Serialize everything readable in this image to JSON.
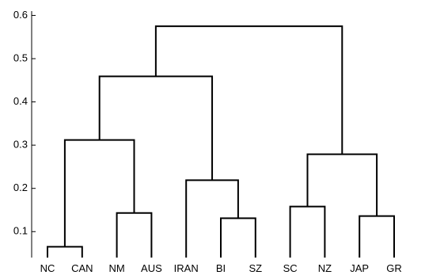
{
  "chart_data": {
    "type": "dendrogram",
    "leaves": [
      "NC",
      "CAN",
      "NM",
      "AUS",
      "IRAN",
      "BI",
      "SZ",
      "SC",
      "NZ",
      "JAP",
      "GR"
    ],
    "y_ticks": [
      0.1,
      0.2,
      0.3,
      0.4,
      0.5,
      0.6
    ],
    "y_tick_labels": [
      "0.1",
      "0.2",
      "0.3",
      "0.4",
      "0.5",
      "0.6"
    ],
    "ylim": [
      0.04,
      0.61
    ],
    "merges": [
      {
        "left": "NC",
        "right": "CAN",
        "height": 0.065
      },
      {
        "left": "NM",
        "right": "AUS",
        "height": 0.143
      },
      {
        "left": "BI",
        "right": "SZ",
        "height": 0.131
      },
      {
        "left": "SC",
        "right": "NZ",
        "height": 0.158
      },
      {
        "left": "JAP",
        "right": "GR",
        "height": 0.136
      },
      {
        "left": "NC+CAN",
        "right": "NM+AUS",
        "height": 0.312
      },
      {
        "left": "IRAN",
        "right": "BI+SZ",
        "height": 0.219
      },
      {
        "left": "SC+NZ",
        "right": "JAP+GR",
        "height": 0.279
      },
      {
        "left": "NC+CAN+NM+AUS",
        "right": "IRAN+BI+SZ",
        "height": 0.459
      },
      {
        "left": "NC+CAN+NM+AUS+IRAN+BI+SZ",
        "right": "SC+NZ+JAP+GR",
        "height": 0.575
      }
    ]
  }
}
